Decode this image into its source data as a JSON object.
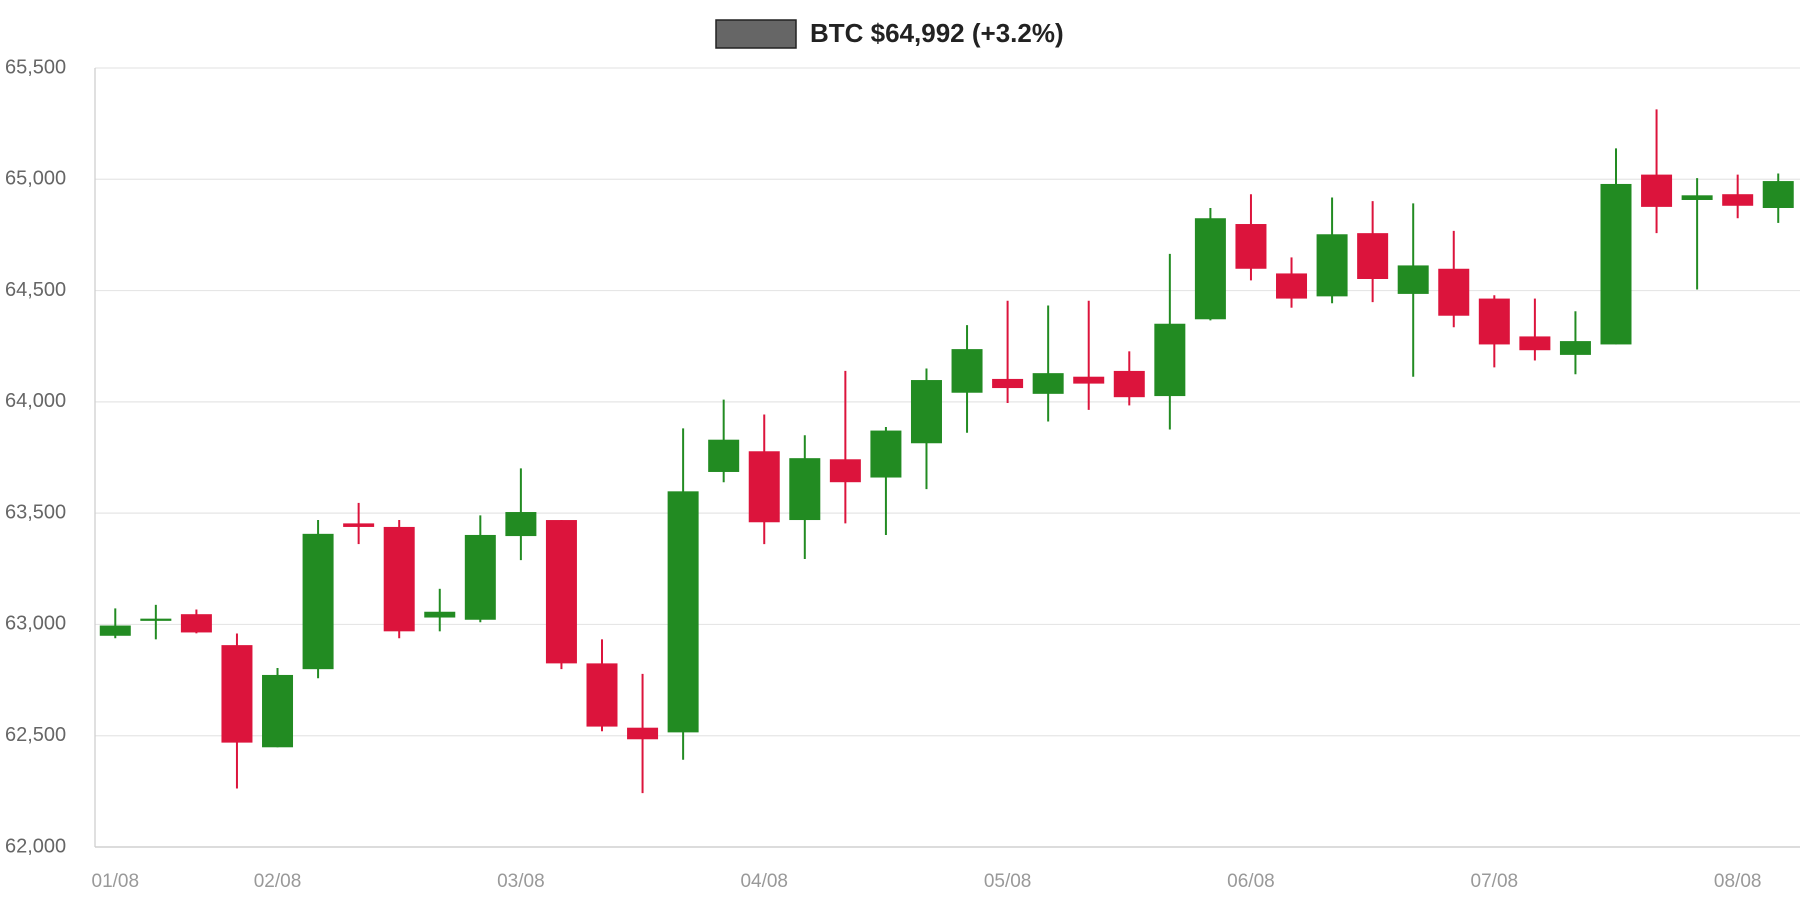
{
  "chart_data": {
    "type": "candlestick",
    "categories": [
      "01/08",
      null,
      null,
      null,
      "02/08",
      null,
      null,
      null,
      null,
      null,
      "03/08",
      null,
      null,
      null,
      null,
      null,
      "04/08",
      null,
      null,
      null,
      null,
      null,
      "05/08",
      null,
      null,
      null,
      null,
      null,
      "06/08",
      null,
      null,
      null,
      null,
      null,
      "07/08",
      null,
      null,
      null,
      null,
      null,
      "08/08",
      null
    ],
    "series": [
      {
        "name": "BTC $64,992 (+3.2%)",
        "color": "#666666",
        "open": [
          62949,
          63016,
          63046,
          62907,
          62448,
          62799,
          63454,
          63438,
          63031,
          63021,
          63397,
          63469,
          62825,
          62536,
          62515,
          63685,
          63778,
          63469,
          63742,
          63660,
          63814,
          64041,
          64103,
          64036,
          64113,
          64139,
          64026,
          64371,
          64799,
          64577,
          64474,
          64758,
          64485,
          64598,
          64464,
          64294,
          64211,
          64258,
          65021,
          64907,
          64933,
          64871
        ],
        "high": [
          63072,
          63088,
          63067,
          62959,
          62804,
          63469,
          63546,
          63469,
          63160,
          63490,
          63701,
          63469,
          62933,
          62778,
          63881,
          64010,
          63943,
          63850,
          64139,
          63887,
          64150,
          64345,
          64454,
          64433,
          64454,
          64227,
          64665,
          64871,
          64933,
          64649,
          64918,
          64902,
          64892,
          64768,
          64479,
          64464,
          64407,
          65139,
          65314,
          65005,
          65021,
          65026
        ],
        "low": [
          62938,
          62933,
          62960,
          62263,
          62448,
          62758,
          63361,
          62938,
          62969,
          63010,
          63289,
          62799,
          62520,
          62242,
          62392,
          63639,
          63361,
          63294,
          63454,
          63402,
          63608,
          63861,
          63995,
          63912,
          63964,
          63984,
          63876,
          64366,
          64546,
          64423,
          64443,
          64448,
          64113,
          64335,
          64155,
          64186,
          64124,
          64258,
          64758,
          64505,
          64825,
          64804
        ],
        "close": [
          62995,
          63026,
          62964,
          62469,
          62773,
          63407,
          63438,
          62969,
          63057,
          63402,
          63505,
          62825,
          62541,
          62484,
          63598,
          63830,
          63459,
          63747,
          63639,
          63871,
          64098,
          64237,
          64062,
          64129,
          64082,
          64021,
          64351,
          64825,
          64598,
          64464,
          64753,
          64552,
          64613,
          64387,
          64258,
          64232,
          64273,
          64979,
          64876,
          64928,
          64881,
          64992
        ]
      }
    ],
    "up_color": "#228b22",
    "down_color": "#dc143c",
    "ylim": [
      62000,
      65500
    ],
    "yticks": [
      {
        "value": 62000,
        "label": "62,000"
      },
      {
        "value": 62500,
        "label": "62,500"
      },
      {
        "value": 63000,
        "label": "63,000"
      },
      {
        "value": 63500,
        "label": "63,500"
      },
      {
        "value": 64000,
        "label": "64,000"
      },
      {
        "value": 64500,
        "label": "64,500"
      },
      {
        "value": 65000,
        "label": "65,000"
      },
      {
        "value": 65500,
        "label": "65,500"
      }
    ],
    "grid": true,
    "legend": "top"
  }
}
